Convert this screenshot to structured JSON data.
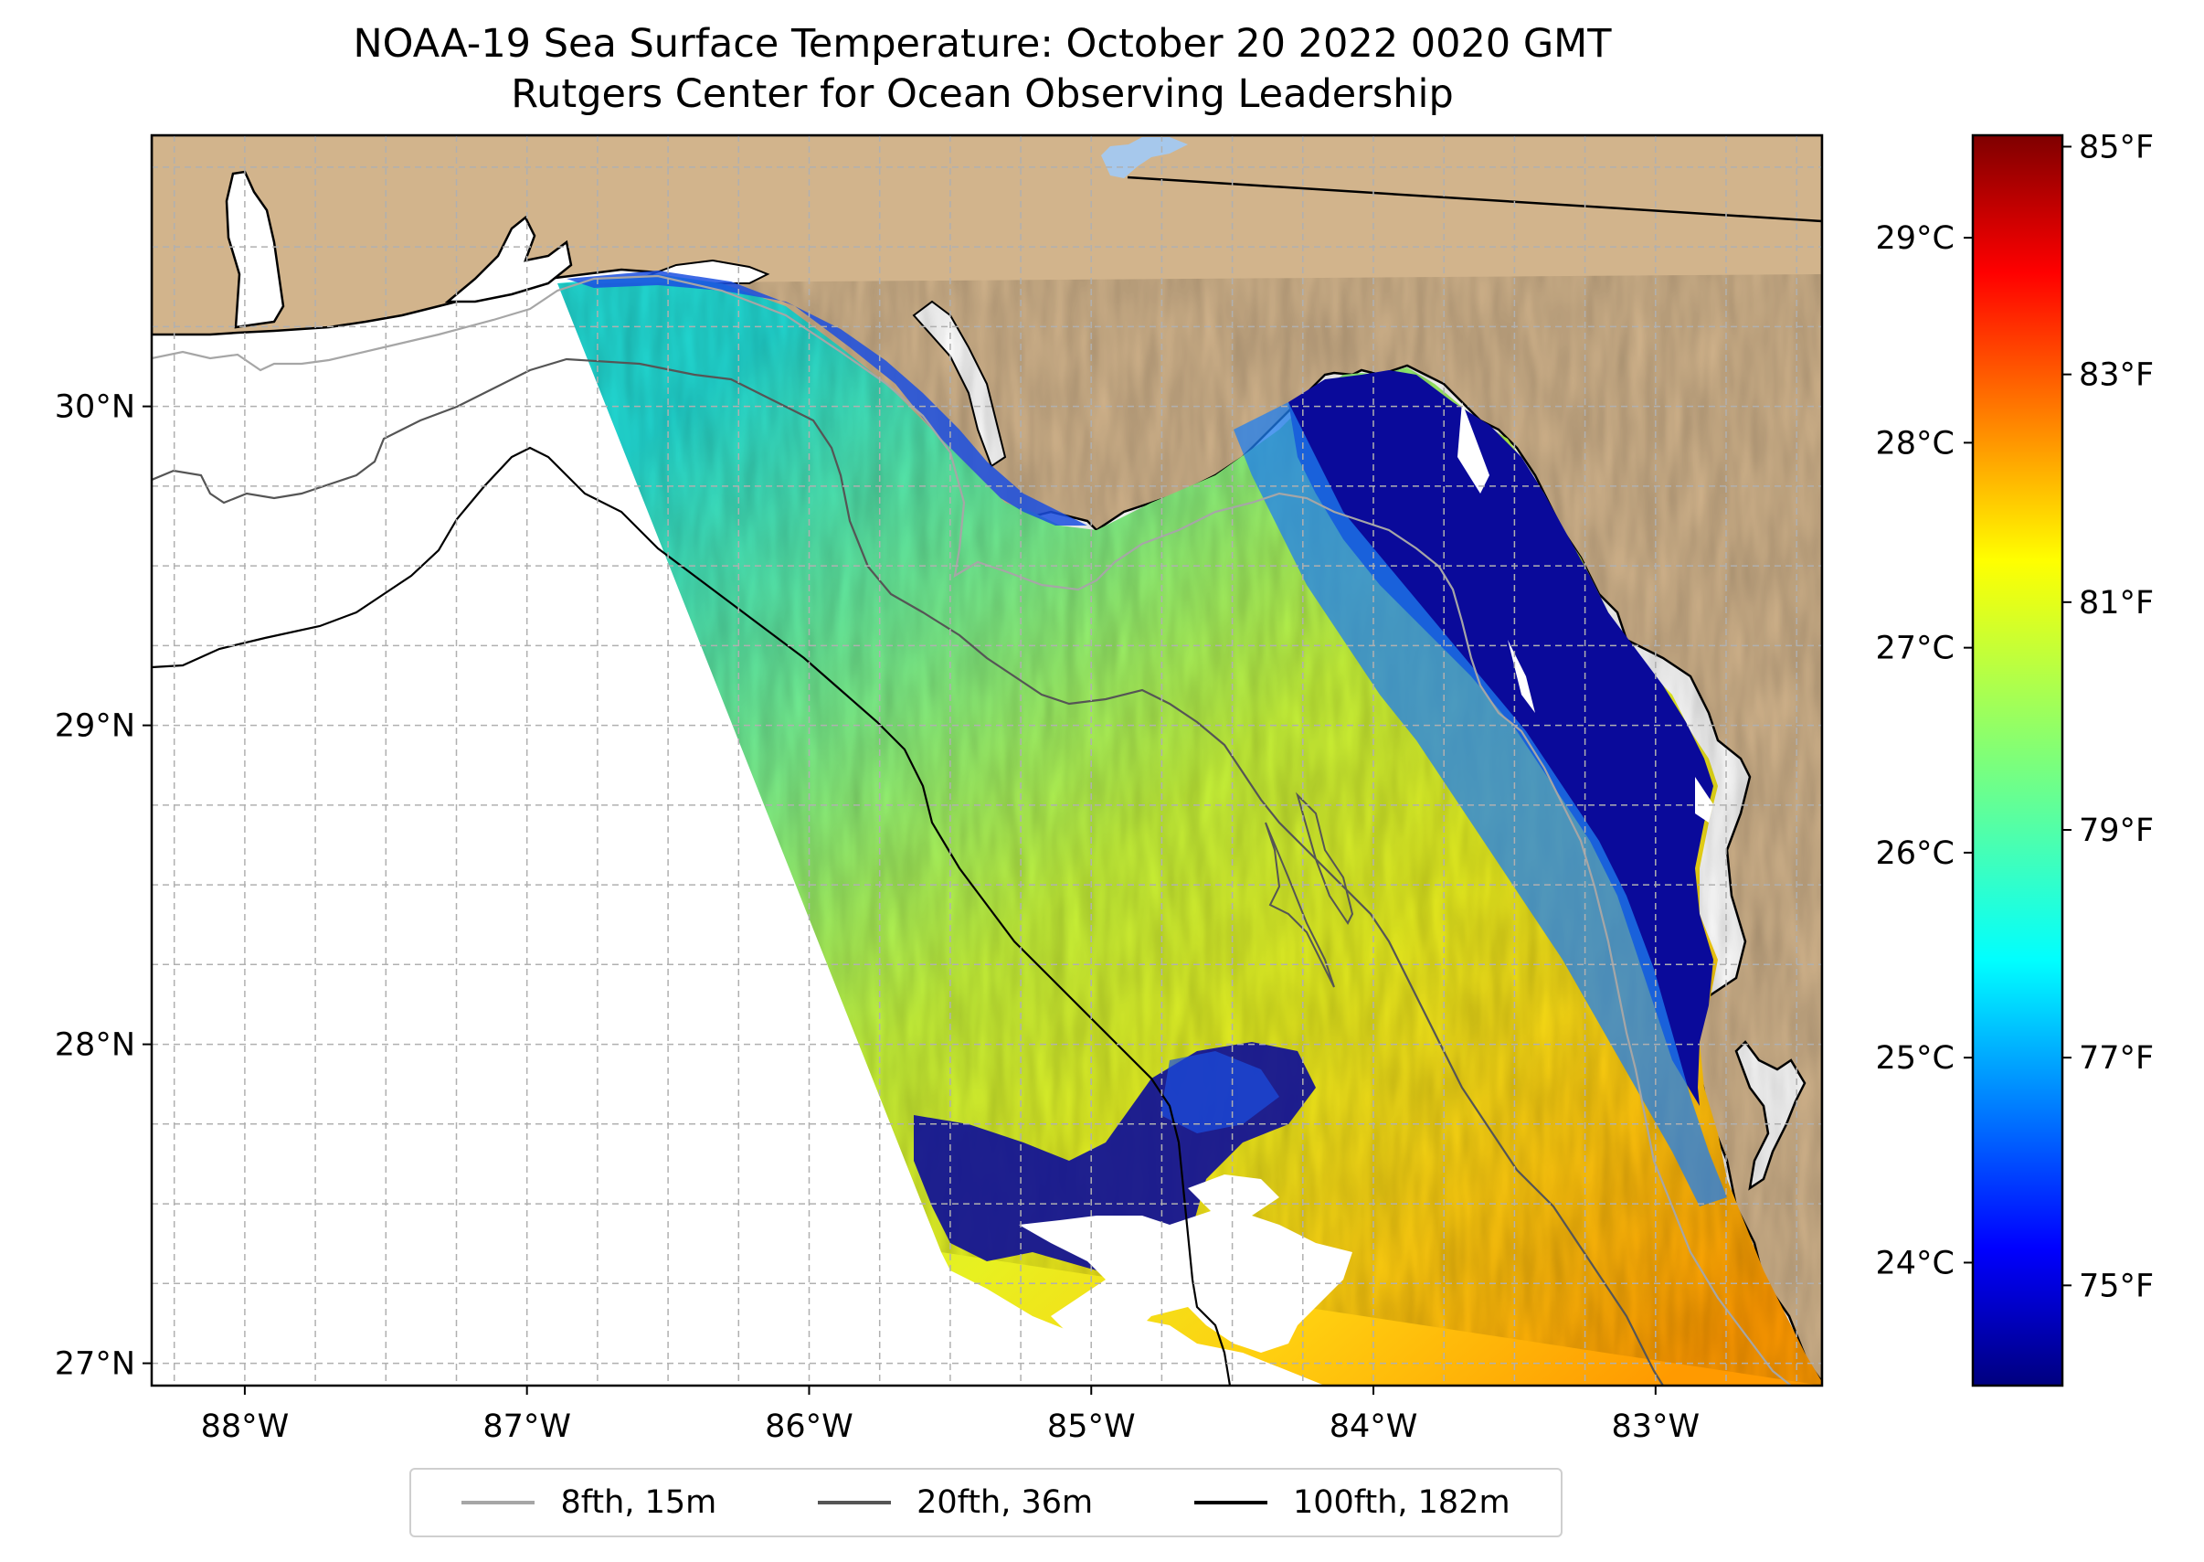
{
  "title": {
    "line1": "NOAA-19 Sea Surface Temperature: October 20 2022 0020 GMT",
    "line2": "Rutgers Center for Ocean Observing Leadership"
  },
  "map": {
    "extent": {
      "lon": [
        -88.33,
        -82.41
      ],
      "lat": [
        26.93,
        30.85
      ]
    },
    "lat_ticks": [
      {
        "value": 30,
        "label": "30°N"
      },
      {
        "value": 29,
        "label": "29°N"
      },
      {
        "value": 28,
        "label": "28°N"
      },
      {
        "value": 27,
        "label": "27°N"
      }
    ],
    "lon_ticks": [
      {
        "value": -88,
        "label": "88°W"
      },
      {
        "value": -87,
        "label": "87°W"
      },
      {
        "value": -86,
        "label": "86°W"
      },
      {
        "value": -85,
        "label": "85°W"
      },
      {
        "value": -84,
        "label": "84°W"
      },
      {
        "value": -83,
        "label": "83°W"
      }
    ],
    "gridline_step_deg": 0.25,
    "colors": {
      "land": "#d2b48c",
      "coast": "#000000",
      "grid": "#b0b0b0",
      "lake": "#a6c8ec"
    },
    "variable": "Sea Surface Temperature"
  },
  "colorbar": {
    "colormap": "jet",
    "celsius_range": [
      23.4,
      29.5
    ],
    "celsius_ticks": [
      {
        "value": 29,
        "label": "29°C"
      },
      {
        "value": 28,
        "label": "28°C"
      },
      {
        "value": 27,
        "label": "27°C"
      },
      {
        "value": 26,
        "label": "26°C"
      },
      {
        "value": 25,
        "label": "25°C"
      },
      {
        "value": 24,
        "label": "24°C"
      }
    ],
    "fahrenheit_ticks": [
      {
        "value": 85,
        "label": "85°F"
      },
      {
        "value": 83,
        "label": "83°F"
      },
      {
        "value": 81,
        "label": "81°F"
      },
      {
        "value": 79,
        "label": "79°F"
      },
      {
        "value": 77,
        "label": "77°F"
      },
      {
        "value": 75,
        "label": "75°F"
      }
    ]
  },
  "legend": {
    "items": [
      {
        "label": "8fth, 15m",
        "color": "#a6a6a6"
      },
      {
        "label": "20fth, 36m",
        "color": "#555555"
      },
      {
        "label": "100fth, 182m",
        "color": "#000000"
      }
    ]
  }
}
